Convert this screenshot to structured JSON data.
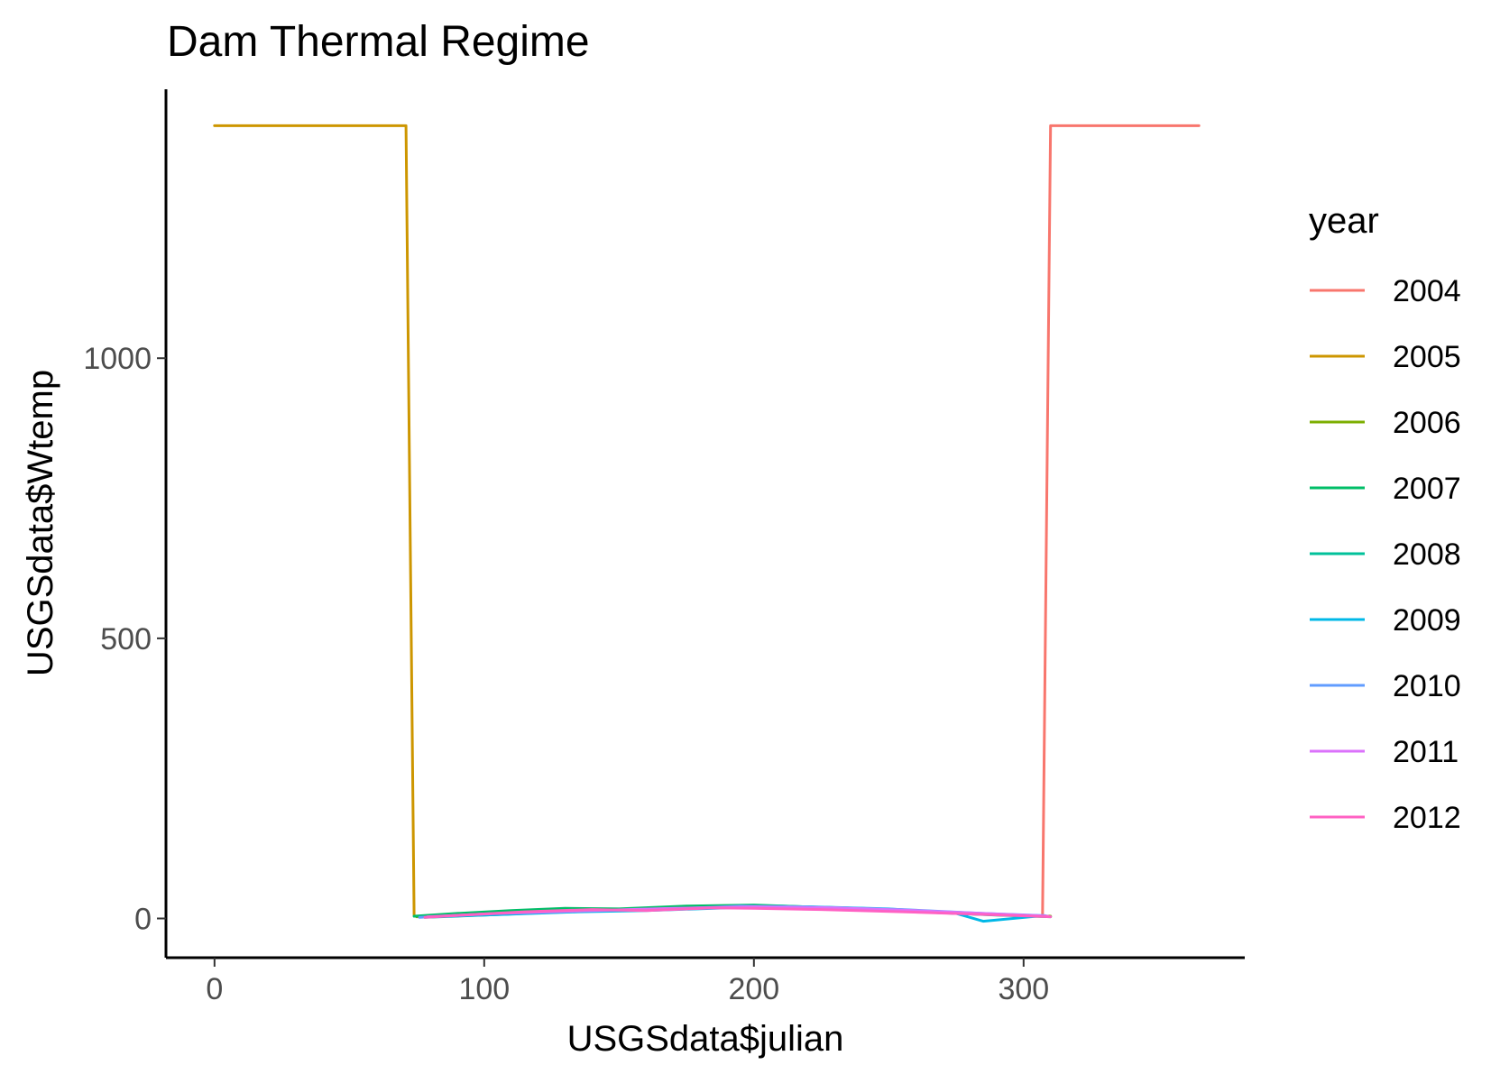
{
  "chart_data": {
    "type": "line",
    "title": "Dam Thermal Regime",
    "xlabel": "USGSdata$julian",
    "ylabel": "USGSdata$Wtemp",
    "xlim": [
      -18,
      382
    ],
    "ylim": [
      -70,
      1480
    ],
    "xticks": [
      0,
      100,
      200,
      300
    ],
    "yticks": [
      0,
      500,
      1000
    ],
    "grid": false,
    "legend": {
      "title": "year",
      "placement": "right"
    },
    "series": [
      {
        "name": "2004",
        "color": "#F8766D",
        "x": [
          307,
          310,
          365
        ],
        "y": [
          5,
          1415,
          1415
        ]
      },
      {
        "name": "2005",
        "color": "#CD9600",
        "x": [
          0,
          71,
          74,
          75
        ],
        "y": [
          1415,
          1415,
          5,
          3
        ]
      },
      {
        "name": "2006",
        "color": "#7CAE00",
        "x": [
          75,
          95,
          120,
          150,
          180,
          200,
          220,
          250,
          280,
          310
        ],
        "y": [
          3,
          8,
          12,
          16,
          21,
          23,
          20,
          15,
          8,
          4
        ]
      },
      {
        "name": "2007",
        "color": "#00BE67",
        "x": [
          74,
          90,
          110,
          130,
          150,
          175,
          200,
          230,
          260,
          290,
          310
        ],
        "y": [
          4,
          9,
          14,
          18,
          17,
          22,
          24,
          19,
          12,
          6,
          3
        ]
      },
      {
        "name": "2008",
        "color": "#00C19A",
        "x": [
          78,
          100,
          125,
          155,
          185,
          210,
          240,
          270,
          300
        ],
        "y": [
          2,
          6,
          11,
          15,
          20,
          22,
          18,
          10,
          5
        ]
      },
      {
        "name": "2009",
        "color": "#00B8E7",
        "x": [
          80,
          105,
          135,
          160,
          190,
          220,
          250,
          275,
          285,
          305
        ],
        "y": [
          3,
          7,
          12,
          14,
          19,
          21,
          17,
          9,
          -5,
          4
        ]
      },
      {
        "name": "2010",
        "color": "#619CFF",
        "x": [
          76,
          100,
          130,
          165,
          195,
          225,
          255,
          285,
          308
        ],
        "y": [
          2,
          8,
          13,
          16,
          22,
          20,
          16,
          9,
          5
        ]
      },
      {
        "name": "2011",
        "color": "#DB72FB",
        "x": [
          79,
          105,
          140,
          170,
          200,
          230,
          260,
          290,
          309
        ],
        "y": [
          3,
          9,
          14,
          18,
          21,
          19,
          14,
          8,
          4
        ]
      },
      {
        "name": "2012",
        "color": "#FF61C3",
        "x": [
          78,
          95,
          115,
          140,
          160,
          185,
          200,
          225,
          255,
          280,
          310
        ],
        "y": [
          2,
          7,
          12,
          16,
          14,
          19,
          18,
          16,
          12,
          8,
          3
        ]
      }
    ]
  }
}
